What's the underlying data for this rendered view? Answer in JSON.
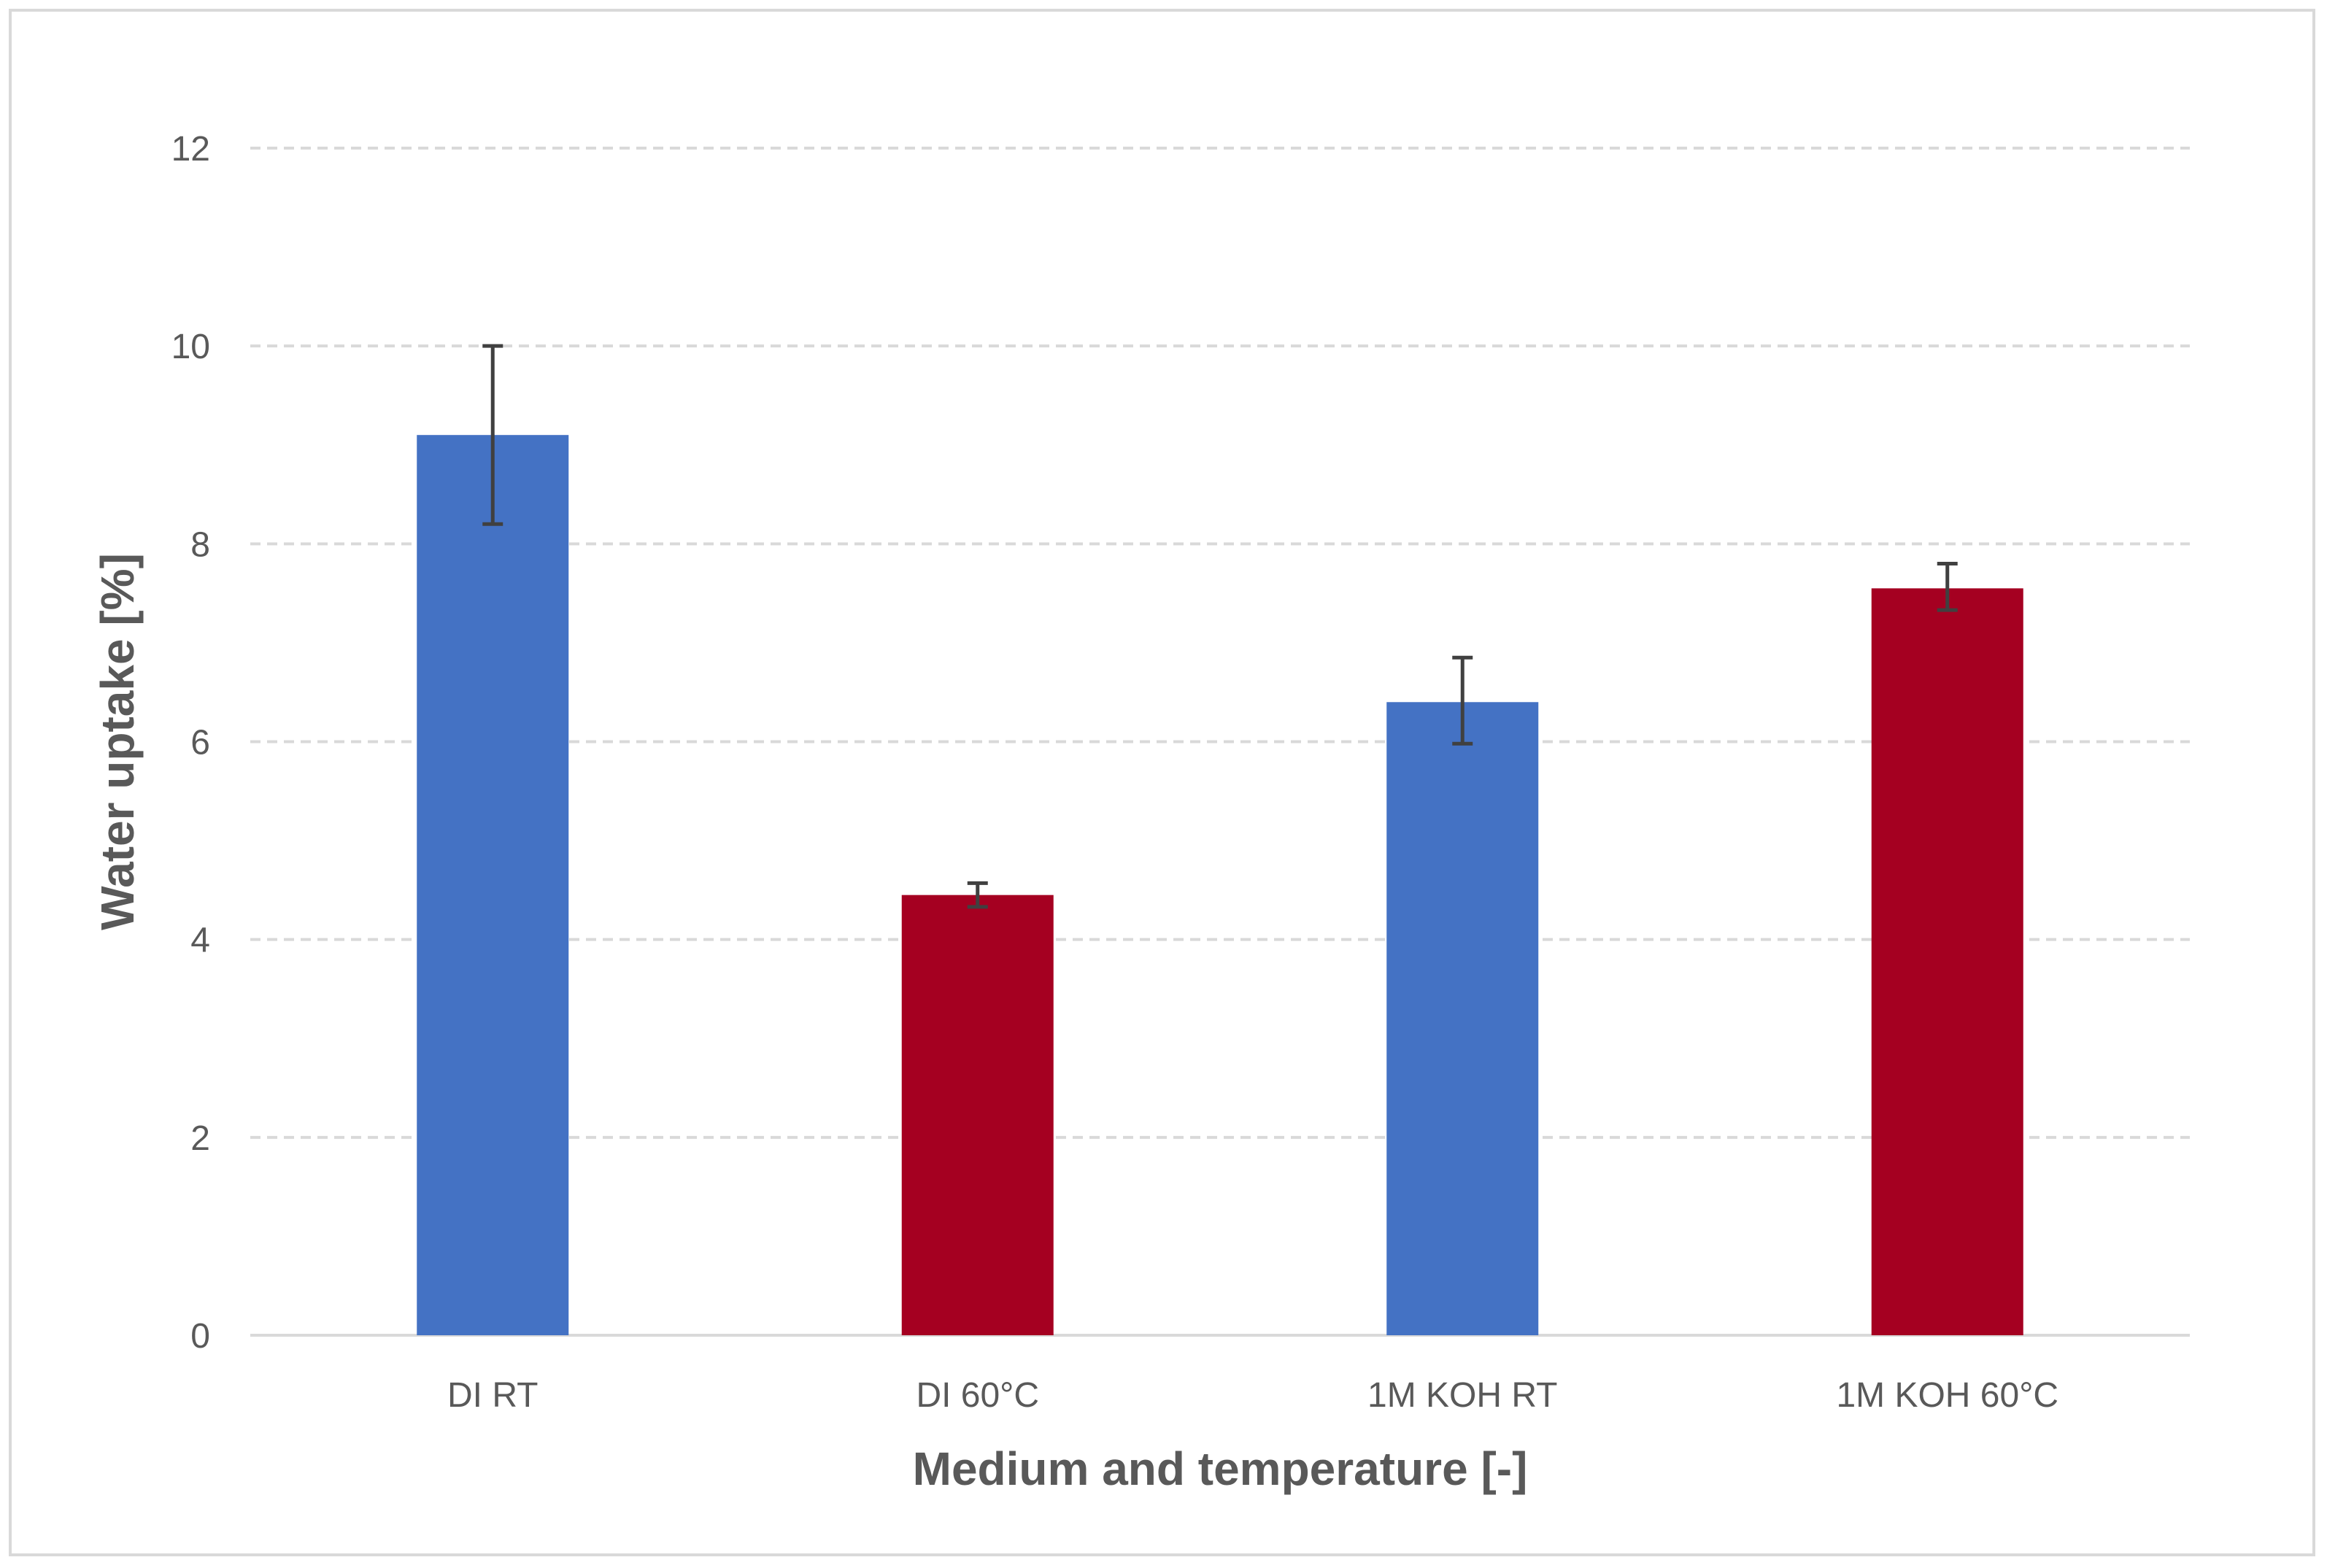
{
  "chart_data": {
    "type": "bar",
    "title": "",
    "xlabel": "Medium and temperature [-]",
    "ylabel": "Water uptake [%]",
    "ylim": [
      0,
      12
    ],
    "yticks": [
      0,
      2,
      4,
      6,
      8,
      10,
      12
    ],
    "grid": true,
    "legend": "none",
    "categories": [
      "DI RT",
      "DI 60°C",
      "1M KOH RT",
      "1M KOH 60°C"
    ],
    "values": [
      9.1,
      4.45,
      6.4,
      7.55
    ],
    "error_low": [
      8.2,
      4.33,
      5.98,
      7.33
    ],
    "error_high": [
      10.0,
      4.57,
      6.85,
      7.8
    ],
    "colors": [
      "#4472c4",
      "#a50021",
      "#4472c4",
      "#a50021"
    ],
    "error_bar_color": "#404040",
    "grid_color": "#d9d9d9",
    "axis_color": "#d9d9d9"
  }
}
